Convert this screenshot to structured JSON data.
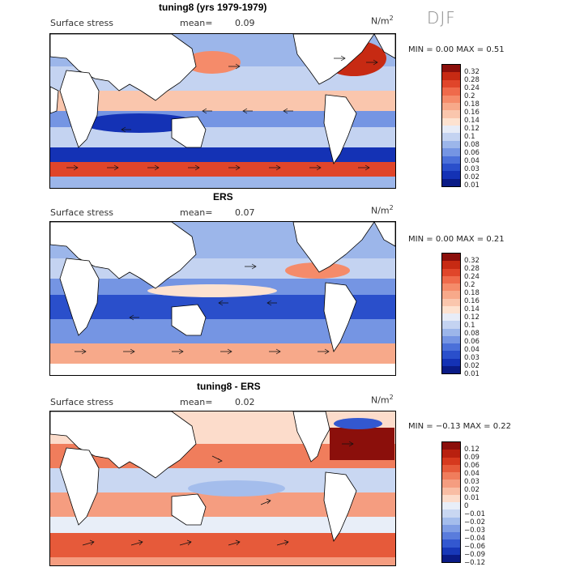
{
  "season": "DJF",
  "panels": [
    {
      "title": "tuning8 (yrs 1979-1979)",
      "subtitle": "Surface stress",
      "mean_label": "mean=",
      "mean_value": "0.09",
      "units": "N/m",
      "units_exp": "2",
      "min_label": "MIN =",
      "min_value": "0.00",
      "max_label": "MAX =",
      "max_value": "0.51",
      "colorbar_labels": [
        "0.32",
        "0.28",
        "0.24",
        "0.2",
        "0.18",
        "0.16",
        "0.14",
        "0.12",
        "0.1",
        "0.08",
        "0.06",
        "0.04",
        "0.03",
        "0.02",
        "0.01"
      ],
      "colorbar_colors": [
        "#8b0f0b",
        "#c72a13",
        "#e0452a",
        "#ef6a4b",
        "#f58b6a",
        "#f7a98a",
        "#fac6ad",
        "#fde2d0",
        "#e7ecf7",
        "#c4d3f1",
        "#9cb6ea",
        "#7595e3",
        "#4b70d9",
        "#2a4fcb",
        "#1432b5",
        "#0a1b86"
      ]
    },
    {
      "title": "ERS",
      "subtitle": "Surface stress",
      "mean_label": "mean=",
      "mean_value": "0.07",
      "units": "N/m",
      "units_exp": "2",
      "min_label": "MIN =",
      "min_value": "0.00",
      "max_label": "MAX =",
      "max_value": "0.21",
      "colorbar_labels": [
        "0.32",
        "0.28",
        "0.24",
        "0.2",
        "0.18",
        "0.16",
        "0.14",
        "0.12",
        "0.1",
        "0.08",
        "0.06",
        "0.04",
        "0.03",
        "0.02",
        "0.01"
      ],
      "colorbar_colors": [
        "#8b0f0b",
        "#c72a13",
        "#e0452a",
        "#ef6a4b",
        "#f58b6a",
        "#f7a98a",
        "#fac6ad",
        "#fde2d0",
        "#e7ecf7",
        "#c4d3f1",
        "#9cb6ea",
        "#7595e3",
        "#4b70d9",
        "#2a4fcb",
        "#1432b5",
        "#0a1b86"
      ]
    },
    {
      "title": "tuning8 - ERS",
      "subtitle": "Surface stress",
      "mean_label": "mean=",
      "mean_value": "0.02",
      "units": "N/m",
      "units_exp": "2",
      "min_label": "MIN =",
      "min_value": "−0.13",
      "max_label": "MAX =",
      "max_value": "0.22",
      "colorbar_labels": [
        "0.12",
        "0.09",
        "0.06",
        "0.04",
        "0.03",
        "0.02",
        "0.01",
        "0",
        "−0.01",
        "−0.02",
        "−0.03",
        "−0.04",
        "−0.06",
        "−0.09",
        "−0.12"
      ],
      "colorbar_colors": [
        "#8b0f0b",
        "#b8200f",
        "#d6391e",
        "#e65a3a",
        "#f07d5c",
        "#f59d80",
        "#f9bda4",
        "#fcdccb",
        "#e8eef8",
        "#c9d7f2",
        "#a4bdec",
        "#7f9de4",
        "#5a7cdc",
        "#3358d0",
        "#1838b8",
        "#0a1b86"
      ]
    }
  ]
}
